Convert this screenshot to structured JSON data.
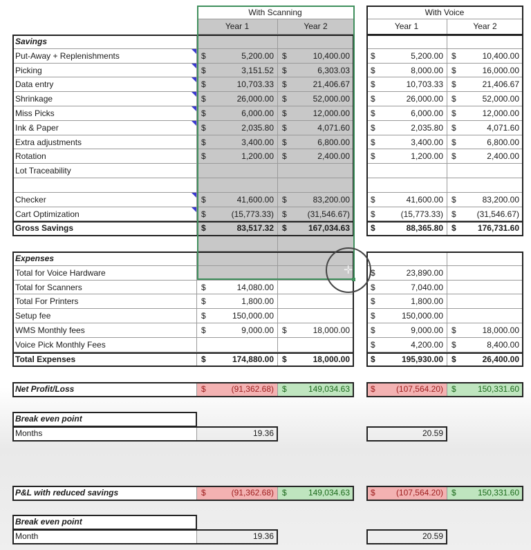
{
  "headers": {
    "scanning": "With Scanning",
    "voice": "With Voice",
    "year1": "Year 1",
    "year2": "Year 2"
  },
  "currency_symbol": "$",
  "savings": {
    "title": "Savings",
    "items": [
      {
        "label": "Put-Away + Replenishments",
        "comment": true,
        "scan": [
          "5,200.00",
          "10,400.00"
        ],
        "voice": [
          "5,200.00",
          "10,400.00"
        ]
      },
      {
        "label": "Picking",
        "comment": true,
        "scan": [
          "3,151.52",
          "6,303.03"
        ],
        "voice": [
          "8,000.00",
          "16,000.00"
        ]
      },
      {
        "label": "Data entry",
        "comment": true,
        "scan": [
          "10,703.33",
          "21,406.67"
        ],
        "voice": [
          "10,703.33",
          "21,406.67"
        ]
      },
      {
        "label": "Shrinkage",
        "comment": true,
        "scan": [
          "26,000.00",
          "52,000.00"
        ],
        "voice": [
          "26,000.00",
          "52,000.00"
        ]
      },
      {
        "label": "Miss Picks",
        "comment": true,
        "scan": [
          "6,000.00",
          "12,000.00"
        ],
        "voice": [
          "6,000.00",
          "12,000.00"
        ]
      },
      {
        "label": "Ink & Paper",
        "comment": true,
        "scan": [
          "2,035.80",
          "4,071.60"
        ],
        "voice": [
          "2,035.80",
          "4,071.60"
        ]
      },
      {
        "label": "Extra adjustments",
        "comment": false,
        "scan": [
          "3,400.00",
          "6,800.00"
        ],
        "voice": [
          "3,400.00",
          "6,800.00"
        ]
      },
      {
        "label": "Rotation",
        "comment": false,
        "scan": [
          "1,200.00",
          "2,400.00"
        ],
        "voice": [
          "1,200.00",
          "2,400.00"
        ]
      },
      {
        "label": "Lot Traceability",
        "comment": false,
        "scan": [
          null,
          null
        ],
        "voice": [
          null,
          null
        ]
      },
      {
        "label": "",
        "comment": false,
        "scan": [
          null,
          null
        ],
        "voice": [
          null,
          null
        ]
      },
      {
        "label": "Checker",
        "comment": true,
        "scan": [
          "41,600.00",
          "83,200.00"
        ],
        "voice": [
          "41,600.00",
          "83,200.00"
        ]
      },
      {
        "label": "Cart Optimization",
        "comment": true,
        "scan": [
          "(15,773.33)",
          "(31,546.67)"
        ],
        "voice": [
          "(15,773.33)",
          "(31,546.67)"
        ]
      }
    ],
    "total": {
      "label": "Gross Savings",
      "scan": [
        "83,517.32",
        "167,034.63"
      ],
      "voice": [
        "88,365.80",
        "176,731.60"
      ]
    }
  },
  "expenses": {
    "title": "Expenses",
    "items": [
      {
        "label": "Total for Voice Hardware",
        "scan": [
          null,
          null
        ],
        "voice": [
          "23,890.00",
          null
        ]
      },
      {
        "label": "Total for Scanners",
        "scan": [
          "14,080.00",
          null
        ],
        "voice": [
          "7,040.00",
          null
        ]
      },
      {
        "label": "Total For Printers",
        "scan": [
          "1,800.00",
          null
        ],
        "voice": [
          "1,800.00",
          null
        ]
      },
      {
        "label": "Setup fee",
        "scan": [
          "150,000.00",
          null
        ],
        "voice": [
          "150,000.00",
          null
        ]
      },
      {
        "label": "WMS Monthly fees",
        "scan": [
          "9,000.00",
          "18,000.00"
        ],
        "voice": [
          "9,000.00",
          "18,000.00"
        ]
      },
      {
        "label": "Voice Pick Monthly Fees",
        "scan": [
          null,
          null
        ],
        "voice": [
          "4,200.00",
          "8,400.00"
        ]
      }
    ],
    "total": {
      "label": "Total Expenses",
      "scan": [
        "174,880.00",
        "18,000.00"
      ],
      "voice": [
        "195,930.00",
        "26,400.00"
      ]
    }
  },
  "net_profit": {
    "label": "Net Profit/Loss",
    "scan": [
      "(91,362.68)",
      "149,034.63"
    ],
    "voice": [
      "(107,564.20)",
      "150,331.60"
    ]
  },
  "break_even_1": {
    "title": "Break even point",
    "label": "Months",
    "scan": "19.36",
    "voice": "20.59"
  },
  "pl_reduced": {
    "label": "P&L with reduced savings",
    "scan": [
      "(91,362.68)",
      "149,034.63"
    ],
    "voice": [
      "(107,564.20)",
      "150,331.60"
    ]
  },
  "break_even_2": {
    "title": "Break even point",
    "label": "Month",
    "scan": "19.36",
    "voice": "20.59"
  },
  "colors": {
    "loss_fill": "#f3b2b2",
    "profit_fill": "#bfe5bf",
    "selection": "#3f8f5c",
    "scan_fill": "#c8c8c8",
    "comment_marker": "#3a3ad0"
  }
}
